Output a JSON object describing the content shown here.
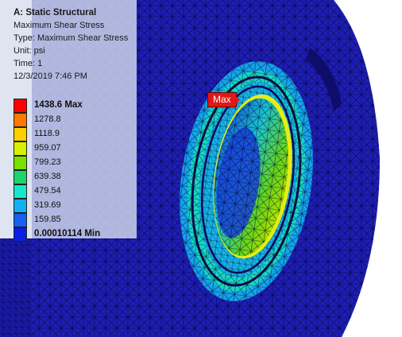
{
  "results_header": {
    "title": "A: Static Structural",
    "result_name": "Maximum Shear Stress",
    "type_line": "Type: Maximum Shear Stress",
    "unit_line": "Unit: psi",
    "time_line": "Time: 1",
    "timestamp": "12/3/2019 7:46 PM"
  },
  "legend": {
    "max_label": "1438.6 Max",
    "min_label": "0.00010114 Min",
    "levels": [
      {
        "label": "1438.6 Max",
        "color": "#ff0000"
      },
      {
        "label": "1278.8",
        "color": "#ff7800"
      },
      {
        "label": "1118.9",
        "color": "#ffd000"
      },
      {
        "label": "959.07",
        "color": "#d8f000"
      },
      {
        "label": "799.23",
        "color": "#7ae000"
      },
      {
        "label": "639.38",
        "color": "#1fd46a"
      },
      {
        "label": "479.54",
        "color": "#15e8c8"
      },
      {
        "label": "319.69",
        "color": "#13aff0"
      },
      {
        "label": "159.85",
        "color": "#1560f0"
      },
      {
        "label": "0.00010114 Min",
        "color": "#0a1ee6"
      }
    ]
  },
  "probe": {
    "label": "Max"
  },
  "colors": {
    "background": "#ffffff",
    "model_base": "#2020b8",
    "mesh_lines": "#000030",
    "info_panel": "#d6deee"
  }
}
